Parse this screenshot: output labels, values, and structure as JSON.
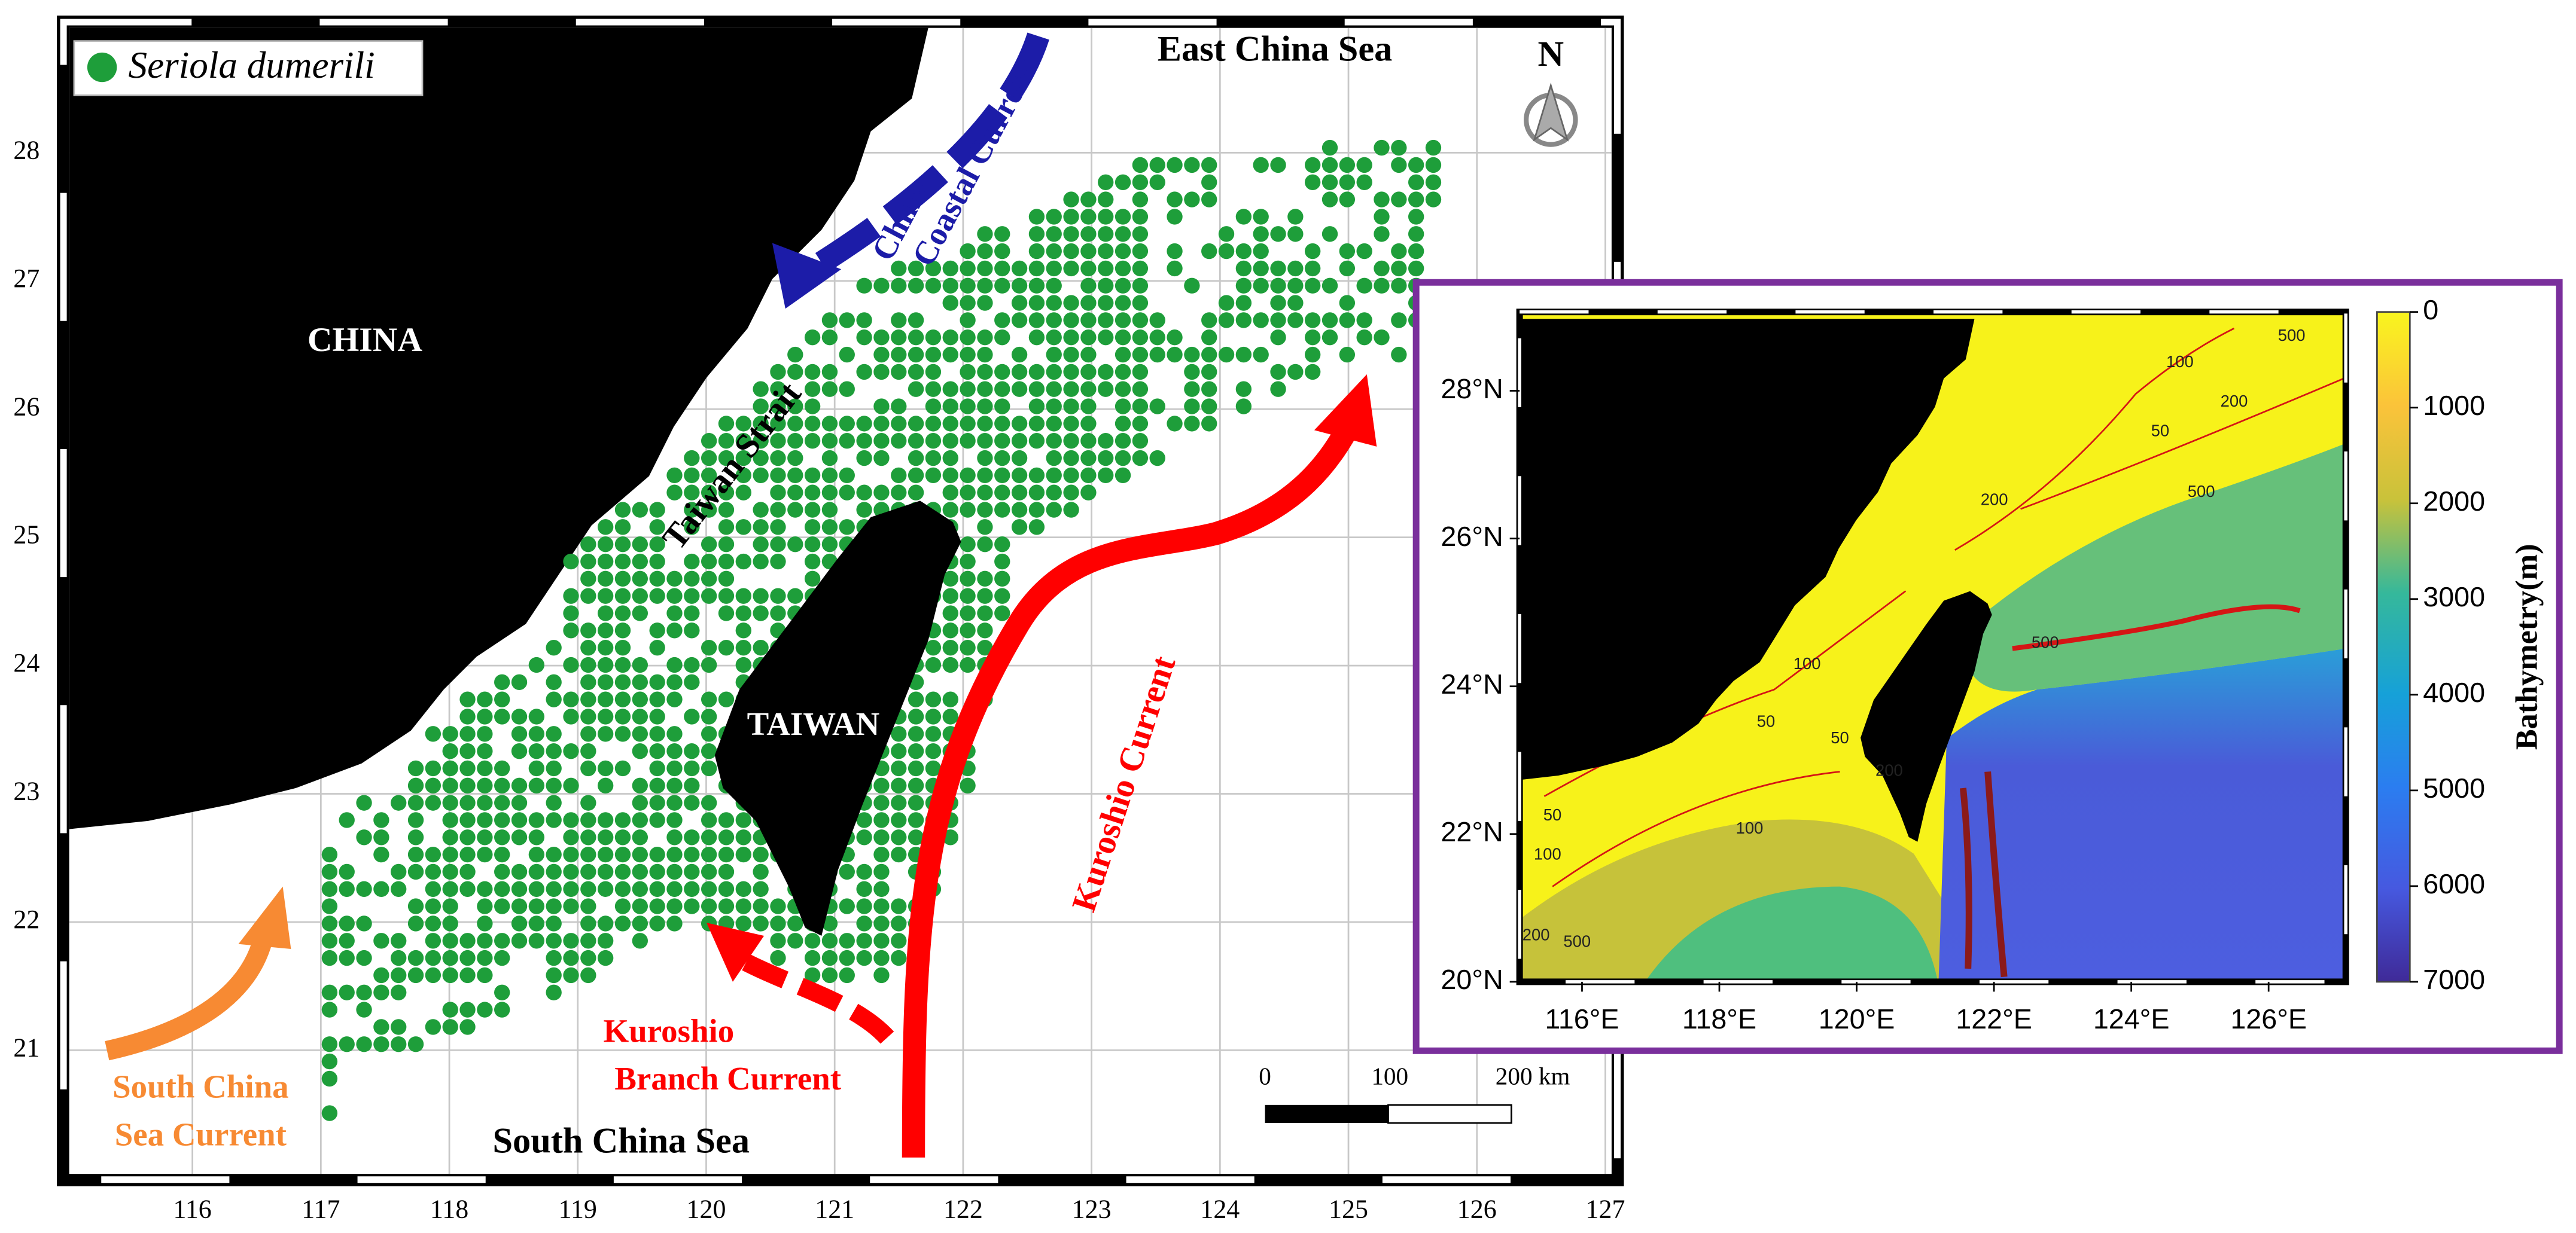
{
  "main_map": {
    "legend": "Seriola dumerili",
    "north": "N",
    "x_ticks": [
      "116",
      "117",
      "118",
      "119",
      "120",
      "121",
      "122",
      "123",
      "124",
      "125",
      "126",
      "127"
    ],
    "y_ticks": [
      "28",
      "27",
      "26",
      "25",
      "24",
      "23",
      "22",
      "21"
    ],
    "places": {
      "china": "CHINA",
      "taiwan": "TAIWAN",
      "strait": "Taiwan Strait",
      "east_sea": "East China Sea",
      "south_sea": "South China Sea"
    },
    "currents": {
      "coastal": [
        "China",
        "Coastal Current"
      ],
      "kuroshio": "Kuroshio Current",
      "branch": [
        "Kuroshio",
        "Branch Current"
      ],
      "south_china_sea": [
        "South China",
        "Sea Current"
      ]
    },
    "scale_bar": [
      "0",
      "100",
      "200 km"
    ]
  },
  "inset": {
    "x_ticks": [
      "116°E",
      "118°E",
      "120°E",
      "122°E",
      "124°E",
      "126°E"
    ],
    "y_ticks": [
      "28°N",
      "26°N",
      "24°N",
      "22°N",
      "20°N"
    ],
    "colorbar": {
      "label": "Bathymetry(m)",
      "ticks": [
        "0",
        "1000",
        "2000",
        "3000",
        "4000",
        "5000",
        "6000",
        "7000"
      ]
    },
    "contour_labels": [
      "50",
      "100",
      "200",
      "500",
      "50",
      "100",
      "200",
      "500",
      "50",
      "100",
      "200",
      "500",
      "500",
      "100",
      "50",
      "200"
    ]
  }
}
